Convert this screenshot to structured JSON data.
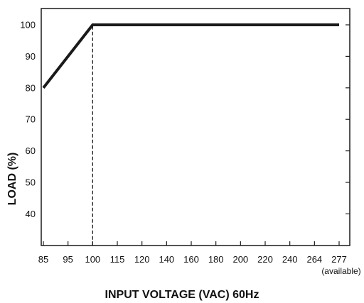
{
  "chart_data": {
    "type": "line",
    "title": "",
    "xlabel": "INPUT VOLTAGE (VAC) 60Hz",
    "ylabel": "LOAD (%)",
    "x_ticks": [
      "85",
      "95",
      "100",
      "115",
      "120",
      "140",
      "160",
      "180",
      "200",
      "220",
      "240",
      "264",
      "277"
    ],
    "x_tick_note": "(available)",
    "y_ticks": [
      40,
      50,
      60,
      70,
      80,
      90,
      100
    ],
    "ylim": [
      30,
      105
    ],
    "x_scale": "categorical-evenly-spaced",
    "grid": false,
    "series": [
      {
        "x": [
          "85",
          "100",
          "277"
        ],
        "y": [
          80,
          100,
          100
        ],
        "color": "#1a1a1a"
      }
    ],
    "reference_lines": [
      {
        "x": "100",
        "from_y": 30,
        "to_y": 100,
        "style": "dashed"
      }
    ]
  }
}
